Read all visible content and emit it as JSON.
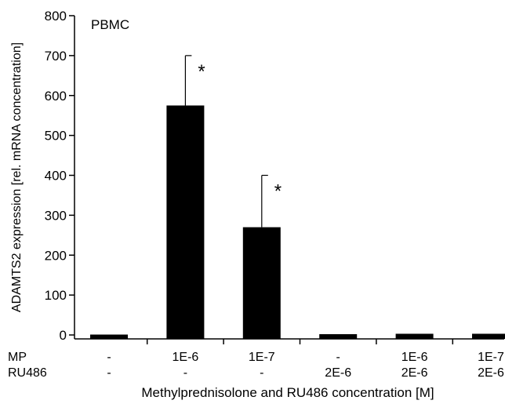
{
  "chart_data": {
    "type": "bar",
    "panel_label": "PBMC",
    "ylabel": "ADAMTS2 expression [rel. mRNA concentration]",
    "xlabel": "Methylprednisolone and RU486 concentration [M]",
    "ylim": [
      0,
      800
    ],
    "yticks": [
      0,
      100,
      200,
      300,
      400,
      500,
      600,
      700,
      800
    ],
    "row_labels": [
      "MP",
      "RU486"
    ],
    "categories": [
      {
        "mp": "-",
        "ru486": "-"
      },
      {
        "mp": "1E-6",
        "ru486": "-"
      },
      {
        "mp": "1E-7",
        "ru486": "-"
      },
      {
        "mp": "-",
        "ru486": "2E-6"
      },
      {
        "mp": "1E-6",
        "ru486": "2E-6"
      },
      {
        "mp": "1E-7",
        "ru486": "2E-6"
      }
    ],
    "values": [
      1,
      575,
      270,
      2,
      3,
      3
    ],
    "errors": [
      0,
      125,
      130,
      0,
      0,
      0
    ],
    "significance": [
      "",
      "*",
      "*",
      "",
      "",
      ""
    ],
    "bar_color": "#000000",
    "grid": false,
    "legend": "none"
  }
}
